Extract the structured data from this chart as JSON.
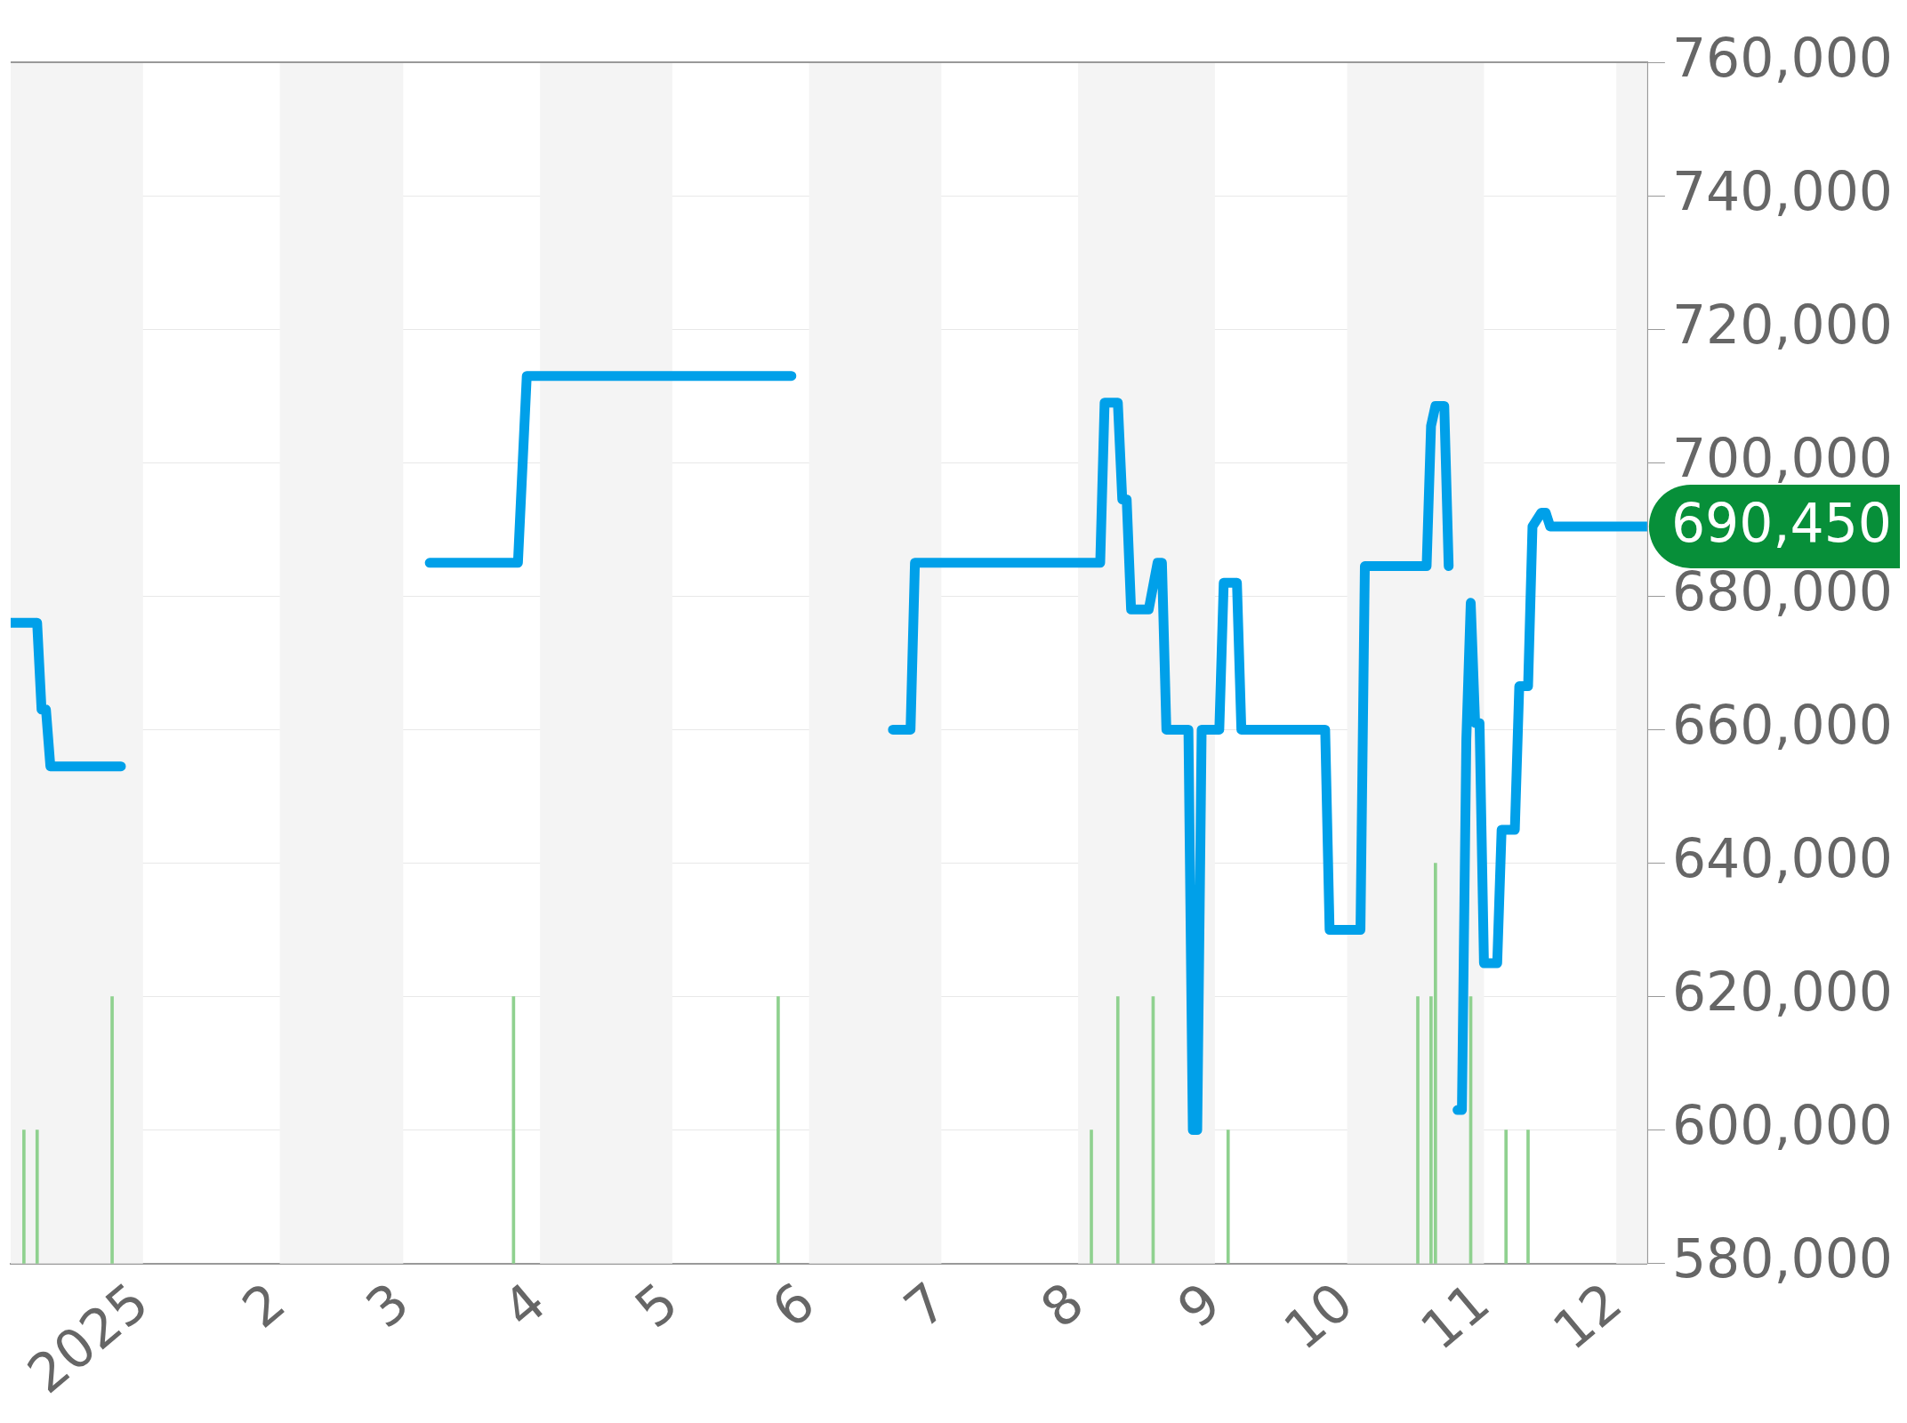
{
  "chart_data": {
    "type": "line",
    "xlim": [
      "2024-12-02",
      "2025-12-08"
    ],
    "xticks": [
      {
        "value": "2025-01-01",
        "label": "2025"
      },
      {
        "value": "2025-02-01",
        "label": "2"
      },
      {
        "value": "2025-03-01",
        "label": "3"
      },
      {
        "value": "2025-04-01",
        "label": "4"
      },
      {
        "value": "2025-05-01",
        "label": "5"
      },
      {
        "value": "2025-06-01",
        "label": "6"
      },
      {
        "value": "2025-07-01",
        "label": "7"
      },
      {
        "value": "2025-08-01",
        "label": "8"
      },
      {
        "value": "2025-09-01",
        "label": "9"
      },
      {
        "value": "2025-10-01",
        "label": "10"
      },
      {
        "value": "2025-11-01",
        "label": "11"
      },
      {
        "value": "2025-12-01",
        "label": "12"
      }
    ],
    "ylim": [
      580000,
      760000
    ],
    "yticks": [
      {
        "value": 580000,
        "label": "580,000"
      },
      {
        "value": 600000,
        "label": "600,000"
      },
      {
        "value": 620000,
        "label": "620,000"
      },
      {
        "value": 640000,
        "label": "640,000"
      },
      {
        "value": 660000,
        "label": "660,000"
      },
      {
        "value": 680000,
        "label": "680,000"
      },
      {
        "value": 700000,
        "label": "700,000"
      },
      {
        "value": 720000,
        "label": "720,000"
      },
      {
        "value": 740000,
        "label": "740,000"
      },
      {
        "value": 760000,
        "label": "760,000"
      }
    ],
    "grid": "y",
    "legend": false,
    "marker": "none",
    "line_style": "solid",
    "bands": [
      {
        "axis": "x",
        "from": "2024-12-02",
        "to": "2025-01-01",
        "color": "#f4f4f4"
      },
      {
        "axis": "x",
        "from": "2025-02-01",
        "to": "2025-03-01",
        "color": "#f4f4f4"
      },
      {
        "axis": "x",
        "from": "2025-04-01",
        "to": "2025-05-01",
        "color": "#f4f4f4"
      },
      {
        "axis": "x",
        "from": "2025-06-01",
        "to": "2025-07-01",
        "color": "#f4f4f4"
      },
      {
        "axis": "x",
        "from": "2025-08-01",
        "to": "2025-09-01",
        "color": "#f4f4f4"
      },
      {
        "axis": "x",
        "from": "2025-10-01",
        "to": "2025-11-01",
        "color": "#f4f4f4"
      },
      {
        "axis": "x",
        "from": "2025-12-01",
        "to": "2025-12-08",
        "color": "#f4f4f4"
      }
    ],
    "annotations": [
      "690,450"
    ],
    "series": [
      {
        "color": "#00a0e9",
        "x": [
          "2024-12-02",
          "2024-12-08",
          "2024-12-09",
          "2024-12-10",
          "2024-12-11",
          "2024-12-27",
          "2025-02-01",
          "2025-03-07",
          "2025-03-27",
          "2025-03-29",
          "2025-05-28",
          "2025-06-10",
          "2025-06-20",
          "2025-06-24",
          "2025-06-25",
          "2025-08-06",
          "2025-08-07",
          "2025-08-10",
          "2025-08-11",
          "2025-08-12",
          "2025-08-13",
          "2025-08-17",
          "2025-08-19",
          "2025-08-20",
          "2025-08-21",
          "2025-08-26",
          "2025-08-27",
          "2025-08-28",
          "2025-08-29",
          "2025-09-02",
          "2025-09-03",
          "2025-09-06",
          "2025-09-07",
          "2025-09-26",
          "2025-09-27",
          "2025-10-04",
          "2025-10-05",
          "2025-10-19",
          "2025-10-20",
          "2025-10-21",
          "2025-10-23",
          "2025-10-24",
          "2025-10-25",
          "2025-10-26",
          "2025-10-27",
          "2025-10-28",
          "2025-10-29",
          "2025-10-30",
          "2025-10-31",
          "2025-11-01",
          "2025-11-04",
          "2025-11-05",
          "2025-11-08",
          "2025-11-09",
          "2025-11-11",
          "2025-11-12",
          "2025-11-14",
          "2025-11-15",
          "2025-11-16",
          "2025-12-08"
        ],
        "values": [
          676000,
          676000,
          663000,
          663000,
          654500,
          654500,
          null,
          685000,
          685000,
          713000,
          713000,
          null,
          660000,
          660000,
          685000,
          685000,
          709000,
          709000,
          694500,
          694500,
          678000,
          678000,
          685000,
          685000,
          660000,
          660000,
          600000,
          600000,
          660000,
          660000,
          682000,
          682000,
          660000,
          660000,
          630000,
          630000,
          684500,
          684500,
          705500,
          708500,
          708500,
          684500,
          null,
          603000,
          603000,
          658500,
          679000,
          661000,
          661000,
          625000,
          625000,
          645000,
          645000,
          666500,
          666500,
          690450,
          692500,
          692500,
          690450,
          690450
        ]
      },
      {
        "type": "bar",
        "color": "#8fd18f",
        "x": [
          "2024-12-05",
          "2024-12-08",
          "2024-12-25",
          "2025-03-26",
          "2025-05-25",
          "2025-08-04",
          "2025-08-10",
          "2025-08-18",
          "2025-09-04",
          "2025-10-17",
          "2025-10-20",
          "2025-10-21",
          "2025-10-29",
          "2025-11-06",
          "2025-11-11"
        ],
        "values": [
          600000,
          600000,
          620000,
          620000,
          620000,
          600000,
          620000,
          620000,
          600000,
          620000,
          620000,
          640000,
          620000,
          600000,
          600000
        ]
      }
    ]
  }
}
